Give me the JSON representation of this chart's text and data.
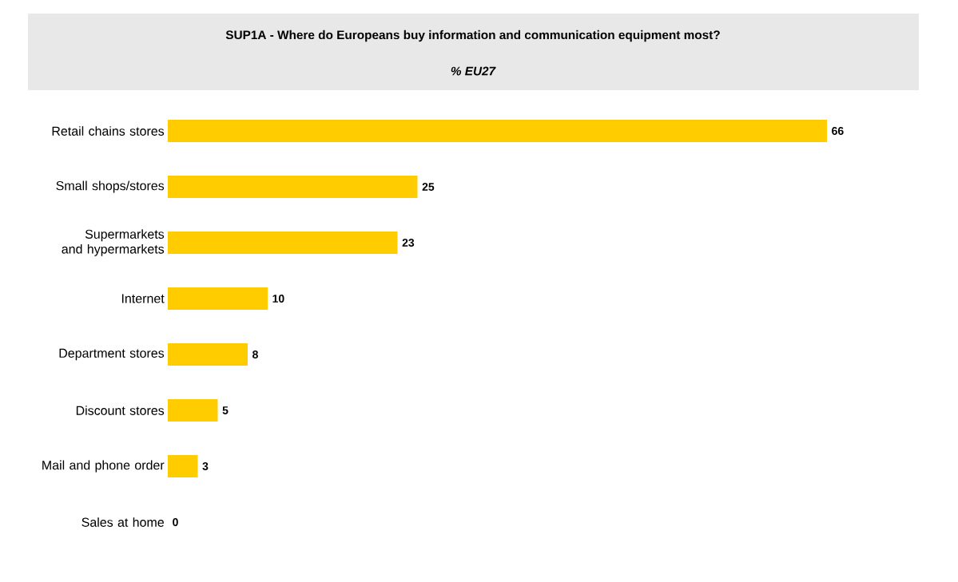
{
  "chart_data": {
    "type": "bar",
    "orientation": "horizontal",
    "title": "SUP1A - Where do Europeans buy information and communication equipment most?",
    "subtitle": "% EU27",
    "categories": [
      "Retail chains stores",
      "Small shops/stores",
      "Supermarkets and hypermarkets",
      "Internet",
      "Department stores",
      "Discount stores",
      "Mail and phone order",
      "Sales at home"
    ],
    "values": [
      66,
      25,
      23,
      10,
      8,
      5,
      3,
      0
    ],
    "color": "#ffcc00",
    "data_labels": true
  }
}
